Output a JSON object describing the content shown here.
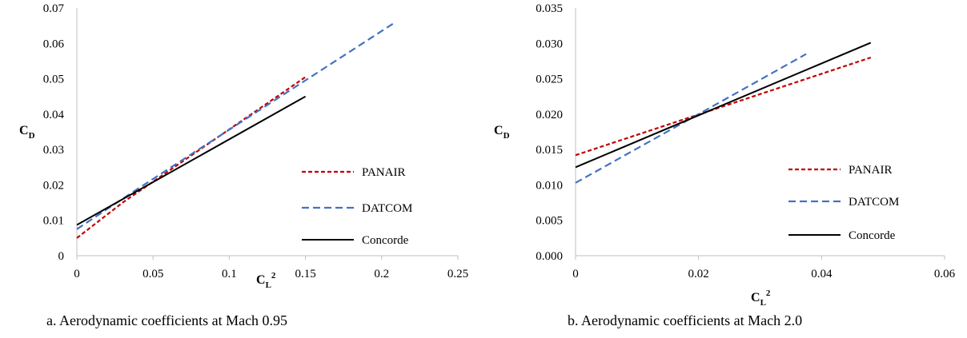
{
  "chart_data": [
    {
      "type": "line",
      "caption": "a. Aerodynamic coefficients at Mach 0.95",
      "xlabel": "C",
      "xlabel_sub": "L",
      "xlabel_sup": "2",
      "ylabel": "C",
      "ylabel_sub": "D",
      "xlim": [
        0,
        0.25
      ],
      "ylim": [
        0,
        0.07
      ],
      "xticks": [
        "0",
        "0.05",
        "0.1",
        "0.15",
        "0.2",
        "0.25"
      ],
      "xtick_values": [
        0,
        0.05,
        0.1,
        0.15,
        0.2,
        0.25
      ],
      "yticks": [
        "0",
        "0.01",
        "0.02",
        "0.03",
        "0.04",
        "0.05",
        "0.06",
        "0.07"
      ],
      "ytick_values": [
        0,
        0.01,
        0.02,
        0.03,
        0.04,
        0.05,
        0.06,
        0.07
      ],
      "legend_position": "bottom-right",
      "series": [
        {
          "name": "PANAIR",
          "color": "#c00000",
          "dash": "dashed",
          "x": [
            0.0,
            0.03,
            0.15
          ],
          "y": [
            0.005,
            0.015,
            0.0505
          ]
        },
        {
          "name": "DATCOM",
          "color": "#4472c4",
          "dash": "long-dashed",
          "x": [
            0.0,
            0.035,
            0.208
          ],
          "y": [
            0.0075,
            0.0175,
            0.0657
          ]
        },
        {
          "name": "Concorde",
          "color": "#000000",
          "dash": "solid",
          "x": [
            0.0,
            0.15
          ],
          "y": [
            0.0087,
            0.045
          ]
        }
      ]
    },
    {
      "type": "line",
      "caption": "b. Aerodynamic coefficients at Mach 2.0",
      "xlabel": "C",
      "xlabel_sub": "L",
      "xlabel_sup": "2",
      "ylabel": "C",
      "ylabel_sub": "D",
      "xlim": [
        0,
        0.06
      ],
      "ylim": [
        0,
        0.035
      ],
      "xticks": [
        "0",
        "0.02",
        "0.04",
        "0.06"
      ],
      "xtick_values": [
        0,
        0.02,
        0.04,
        0.06
      ],
      "yticks": [
        "0.000",
        "0.005",
        "0.010",
        "0.015",
        "0.020",
        "0.025",
        "0.030",
        "0.035"
      ],
      "ytick_values": [
        0,
        0.005,
        0.01,
        0.015,
        0.02,
        0.025,
        0.03,
        0.035
      ],
      "legend_position": "bottom-right",
      "series": [
        {
          "name": "PANAIR",
          "color": "#c00000",
          "dash": "dashed",
          "x": [
            0.0,
            0.048
          ],
          "y": [
            0.0142,
            0.028
          ]
        },
        {
          "name": "DATCOM",
          "color": "#4472c4",
          "dash": "long-dashed",
          "x": [
            0.0,
            0.0375
          ],
          "y": [
            0.0103,
            0.0285
          ]
        },
        {
          "name": "Concorde",
          "color": "#000000",
          "dash": "solid",
          "x": [
            0.0,
            0.048
          ],
          "y": [
            0.0125,
            0.0301
          ]
        }
      ]
    }
  ]
}
